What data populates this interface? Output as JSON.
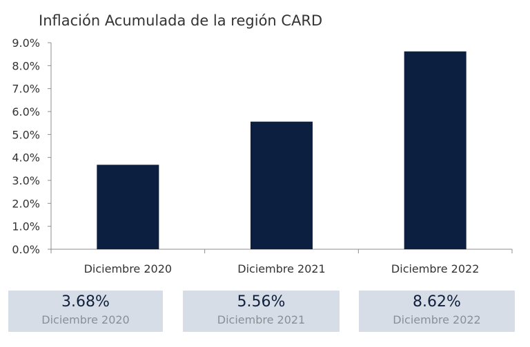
{
  "chart_data": {
    "type": "bar",
    "title": "Inflación Acumulada de la región CARD",
    "categories": [
      "Diciembre 2020",
      "Diciembre 2021",
      "Diciembre 2022"
    ],
    "values": [
      3.68,
      5.56,
      8.62
    ],
    "ylim": [
      0,
      9
    ],
    "yticks": [
      "0.0%",
      "1.0%",
      "2.0%",
      "3.0%",
      "4.0%",
      "5.0%",
      "6.0%",
      "7.0%",
      "8.0%",
      "9.0%"
    ],
    "bar_color": "#0d1f40",
    "grid": false,
    "legend": "none"
  },
  "cards": [
    {
      "value": "3.68%",
      "label": "Diciembre 2020"
    },
    {
      "value": "5.56%",
      "label": "Diciembre 2021"
    },
    {
      "value": "8.62%",
      "label": "Diciembre 2022"
    }
  ],
  "colors": {
    "card_background": "#d6dde6",
    "card_value_text": "#0f1f3d",
    "card_label_text": "#8a8f96"
  }
}
